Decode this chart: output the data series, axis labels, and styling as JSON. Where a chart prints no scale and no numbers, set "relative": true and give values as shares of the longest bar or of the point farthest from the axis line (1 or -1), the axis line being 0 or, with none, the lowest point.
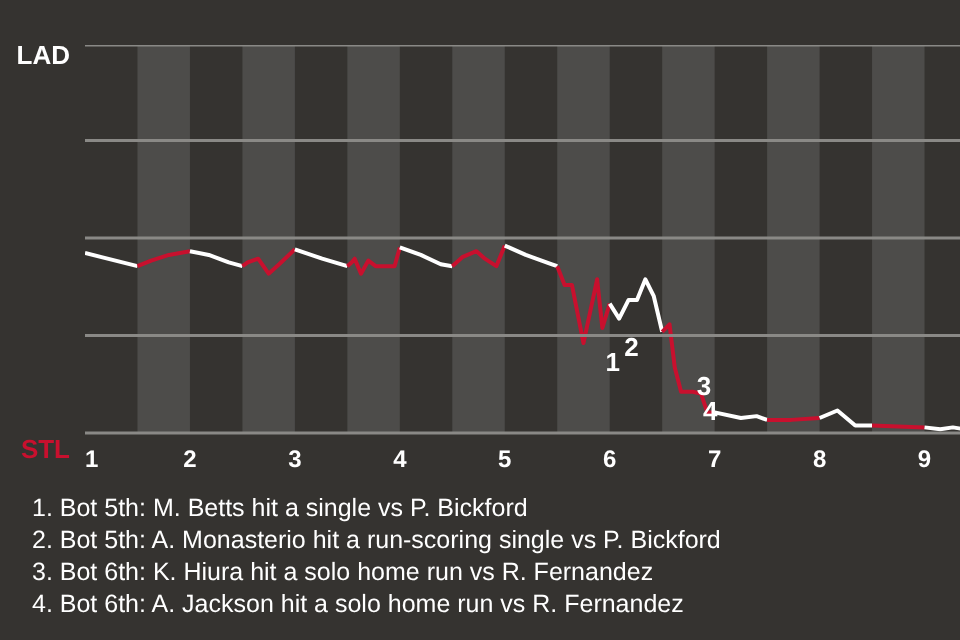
{
  "chart_data": {
    "type": "line",
    "relative": true,
    "series": [
      {
        "color": "#ffffff",
        "x": [
          1.0,
          1.5
        ],
        "values": [
          0.96,
          0.89
        ]
      },
      {
        "color": "#c8102e",
        "x": [
          1.5,
          1.63,
          1.8,
          2.0
        ],
        "values": [
          0.89,
          0.92,
          0.95,
          0.97
        ]
      },
      {
        "color": "#ffffff",
        "x": [
          2.0,
          2.18,
          2.37,
          2.5
        ],
        "values": [
          0.97,
          0.95,
          0.91,
          0.89
        ]
      },
      {
        "color": "#c8102e",
        "x": [
          2.5,
          2.55,
          2.65,
          2.75,
          2.85,
          3.0
        ],
        "values": [
          0.89,
          0.91,
          0.93,
          0.85,
          0.9,
          0.98
        ]
      },
      {
        "color": "#ffffff",
        "x": [
          3.0,
          3.26,
          3.5
        ],
        "values": [
          0.98,
          0.93,
          0.89
        ]
      },
      {
        "color": "#c8102e",
        "x": [
          3.5,
          3.54,
          3.57,
          3.63,
          3.7,
          3.77,
          3.95,
          4.0
        ],
        "values": [
          0.89,
          0.91,
          0.93,
          0.85,
          0.92,
          0.89,
          0.89,
          0.99
        ]
      },
      {
        "color": "#ffffff",
        "x": [
          4.0,
          4.2,
          4.39,
          4.5
        ],
        "values": [
          0.99,
          0.95,
          0.9,
          0.89
        ]
      },
      {
        "color": "#c8102e",
        "x": [
          4.5,
          4.6,
          4.73,
          4.81,
          4.92,
          5.0
        ],
        "values": [
          0.89,
          0.94,
          0.97,
          0.93,
          0.89,
          1.0
        ]
      },
      {
        "color": "#ffffff",
        "x": [
          5.0,
          5.2,
          5.45,
          5.5
        ],
        "values": [
          1.0,
          0.95,
          0.9,
          0.89
        ]
      },
      {
        "color": "#c8102e",
        "x": [
          5.5,
          5.57,
          5.64,
          5.75,
          5.8,
          5.88,
          5.93,
          6.0
        ],
        "values": [
          0.89,
          0.79,
          0.79,
          0.48,
          0.61,
          0.82,
          0.56,
          0.69
        ]
      },
      {
        "color": "#ffffff",
        "x": [
          6.0,
          6.09,
          6.18,
          6.26,
          6.34,
          6.42,
          6.5
        ],
        "values": [
          0.69,
          0.61,
          0.71,
          0.71,
          0.82,
          0.73,
          0.54
        ]
      },
      {
        "color": "#c8102e",
        "x": [
          6.5,
          6.57,
          6.62,
          6.68,
          6.79,
          6.87,
          6.93,
          7.0
        ],
        "values": [
          0.54,
          0.58,
          0.35,
          0.22,
          0.22,
          0.21,
          0.11,
          0.11
        ]
      },
      {
        "color": "#ffffff",
        "x": [
          7.0,
          7.25,
          7.4,
          7.5
        ],
        "values": [
          0.11,
          0.08,
          0.09,
          0.07
        ]
      },
      {
        "color": "#c8102e",
        "x": [
          7.5,
          7.73,
          8.0
        ],
        "values": [
          0.07,
          0.07,
          0.08
        ]
      },
      {
        "color": "#ffffff",
        "x": [
          8.0,
          8.17,
          8.34,
          8.5
        ],
        "values": [
          0.08,
          0.12,
          0.04,
          0.04
        ]
      },
      {
        "color": "#c8102e",
        "x": [
          8.5,
          9.0
        ],
        "values": [
          0.04,
          0.03
        ]
      },
      {
        "color": "#ffffff",
        "x": [
          9.0,
          9.15,
          9.27,
          9.49
        ],
        "values": [
          0.03,
          0.02,
          0.03,
          0.01
        ]
      }
    ],
    "xlim": [
      1,
      9.5
    ],
    "xticks": [
      1,
      2,
      3,
      4,
      5,
      6,
      7,
      8,
      9
    ],
    "ref_lines": [
      {
        "axis": "y",
        "value": 0.52,
        "color": "#8a8986"
      },
      {
        "axis": "y",
        "value": 1.04,
        "color": "#8a8986"
      },
      {
        "axis": "y",
        "value": 1.56,
        "color": "#8a8986"
      },
      {
        "axis": "y",
        "value": 2.07,
        "color": "#8a8986"
      }
    ],
    "bands": [
      {
        "axis": "x",
        "from": 1.5,
        "to": 2,
        "color": "#4d4c4a"
      },
      {
        "axis": "x",
        "from": 2.5,
        "to": 3,
        "color": "#4d4c4a"
      },
      {
        "axis": "x",
        "from": 3.5,
        "to": 4,
        "color": "#4d4c4a"
      },
      {
        "axis": "x",
        "from": 4.5,
        "to": 5,
        "color": "#4d4c4a"
      },
      {
        "axis": "x",
        "from": 5.5,
        "to": 6,
        "color": "#4d4c4a"
      },
      {
        "axis": "x",
        "from": 6.5,
        "to": 7,
        "color": "#4d4c4a"
      },
      {
        "axis": "x",
        "from": 7.5,
        "to": 8,
        "color": "#4d4c4a"
      },
      {
        "axis": "x",
        "from": 8.5,
        "to": 9,
        "color": "#4d4c4a"
      }
    ],
    "annotations": [
      "LAD",
      "STL",
      {
        "text": "1",
        "x": 5.75,
        "y": 0.48
      },
      {
        "text": "2",
        "x": 5.93,
        "y": 0.56
      },
      {
        "text": "3",
        "x": 6.62,
        "y": 0.35
      },
      {
        "text": "4",
        "x": 6.68,
        "y": 0.22
      },
      "1. Bot 5th: M. Betts hit a single vs P. Bickford",
      "2. Bot 5th: A. Monasterio hit a run-scoring single vs P. Bickford",
      "3. Bot 6th: K. Hiura hit a solo home run vs R. Fernandez",
      "4. Bot 6th: A. Jackson hit a solo home run vs R. Fernandez"
    ]
  }
}
